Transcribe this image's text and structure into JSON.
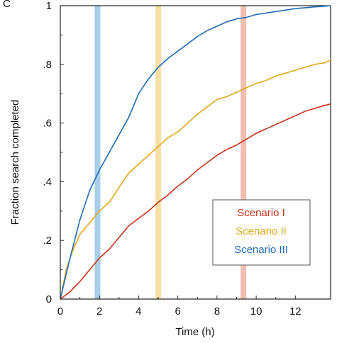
{
  "panel_label": "C",
  "chart_data": {
    "type": "line",
    "title": "",
    "xlabel": "Time (h)",
    "ylabel": "Fraction search completed",
    "xlim": [
      0,
      13.8
    ],
    "ylim": [
      0,
      1
    ],
    "x_ticks": [
      0,
      2,
      4,
      6,
      8,
      10,
      12
    ],
    "x_tick_labels": [
      "0",
      "2",
      "4",
      "6",
      "8",
      "10",
      "12"
    ],
    "y_ticks": [
      0,
      0.2,
      0.4,
      0.6,
      0.8,
      1
    ],
    "y_tick_labels": [
      "0",
      ".2",
      ".4",
      ".6",
      ".8",
      "1"
    ],
    "grid": false,
    "legend_position": "lower-right",
    "vertical_bands": [
      {
        "x": 1.9,
        "color": "#9ecae9"
      },
      {
        "x": 5.0,
        "color": "#f7dc9b"
      },
      {
        "x": 9.35,
        "color": "#f0b8a6"
      }
    ],
    "series": [
      {
        "name": "Scenario I",
        "color": "#c8331b",
        "x": [
          0,
          0.5,
          1.0,
          1.5,
          2.0,
          2.5,
          3.0,
          3.5,
          4.0,
          4.5,
          5.0,
          5.5,
          6.0,
          6.5,
          7.0,
          7.5,
          8.0,
          8.5,
          9.0,
          9.5,
          10.0,
          10.5,
          11.0,
          11.5,
          12.0,
          12.5,
          13.0,
          13.5,
          13.8
        ],
        "values": [
          0,
          0.025,
          0.06,
          0.1,
          0.14,
          0.17,
          0.21,
          0.25,
          0.275,
          0.3,
          0.33,
          0.355,
          0.385,
          0.41,
          0.44,
          0.465,
          0.49,
          0.51,
          0.525,
          0.545,
          0.565,
          0.58,
          0.595,
          0.61,
          0.625,
          0.64,
          0.65,
          0.66,
          0.665
        ]
      },
      {
        "name": "Scenario II",
        "color": "#e0a81b",
        "x": [
          0,
          0.3,
          0.6,
          1.0,
          1.5,
          2.0,
          2.5,
          3.0,
          3.5,
          4.0,
          4.5,
          5.0,
          5.5,
          6.0,
          6.5,
          7.0,
          7.5,
          8.0,
          8.5,
          9.0,
          9.5,
          10.0,
          10.5,
          11.0,
          11.5,
          12.0,
          12.5,
          13.0,
          13.5,
          13.8
        ],
        "values": [
          0,
          0.1,
          0.16,
          0.22,
          0.26,
          0.3,
          0.33,
          0.38,
          0.43,
          0.46,
          0.49,
          0.52,
          0.55,
          0.57,
          0.6,
          0.63,
          0.655,
          0.68,
          0.69,
          0.705,
          0.72,
          0.735,
          0.745,
          0.76,
          0.77,
          0.78,
          0.79,
          0.8,
          0.805,
          0.815
        ]
      },
      {
        "name": "Scenario III",
        "color": "#1f6bb5",
        "x": [
          0,
          0.5,
          1.0,
          1.5,
          2.0,
          2.5,
          3.0,
          3.5,
          4.0,
          4.5,
          5.0,
          5.5,
          6.0,
          6.5,
          7.0,
          7.5,
          8.0,
          8.5,
          9.0,
          9.5,
          10.0,
          10.5,
          11.0,
          11.5,
          12.0,
          12.5,
          13.0,
          13.5,
          13.8
        ],
        "values": [
          0,
          0.14,
          0.27,
          0.37,
          0.44,
          0.5,
          0.56,
          0.62,
          0.7,
          0.75,
          0.79,
          0.82,
          0.845,
          0.87,
          0.895,
          0.915,
          0.93,
          0.945,
          0.955,
          0.96,
          0.97,
          0.975,
          0.98,
          0.985,
          0.99,
          0.993,
          0.996,
          0.998,
          1.0
        ]
      }
    ]
  }
}
